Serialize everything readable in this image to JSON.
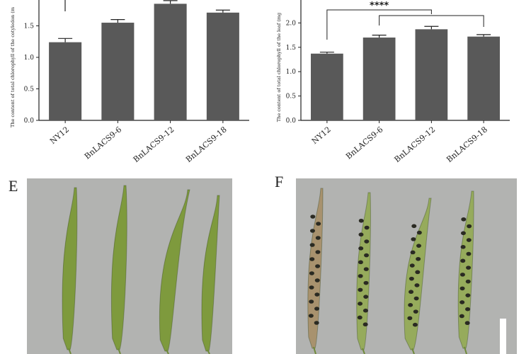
{
  "chart_data": [
    {
      "type": "bar",
      "categories": [
        "NY12",
        "BnLACS9-6",
        "BnLACS9-12",
        "BnLACS9-18"
      ],
      "values": [
        1.24,
        1.55,
        1.85,
        1.71
      ],
      "errors": [
        0.06,
        0.05,
        0.05,
        0.04
      ],
      "ylabel": "The content of total chlorophyll of the cotyledon (m",
      "ylim": [
        0,
        2.0
      ],
      "yticks": [
        "0.0",
        "0.5",
        "1.0",
        "1.5"
      ],
      "bar_color": "#595959",
      "grid": false
    },
    {
      "type": "bar",
      "categories": [
        "NY12",
        "BnLACS9-6",
        "BnLACS9-12",
        "BnLACS9-18"
      ],
      "values": [
        1.37,
        1.7,
        1.87,
        1.72
      ],
      "errors": [
        0.03,
        0.05,
        0.06,
        0.04
      ],
      "ylabel": "The content of total chlorophyll of the leaf (mg",
      "ylim": [
        0,
        2.5
      ],
      "yticks": [
        "0.0",
        "0.5",
        "1.0",
        "1.5",
        "2.0"
      ],
      "significance": "****",
      "bar_color": "#595959",
      "grid": false
    }
  ],
  "panels": {
    "E": "E",
    "F": "F"
  },
  "photo": {
    "background": "#b2b3b1",
    "pod_color_E": "#7e9a3d",
    "pod_color_F": "#96ab5c",
    "pod_color_F_dry": "#a8926e",
    "seed_color": "#2a2a22",
    "scale_bar_color": "#ffffff"
  }
}
